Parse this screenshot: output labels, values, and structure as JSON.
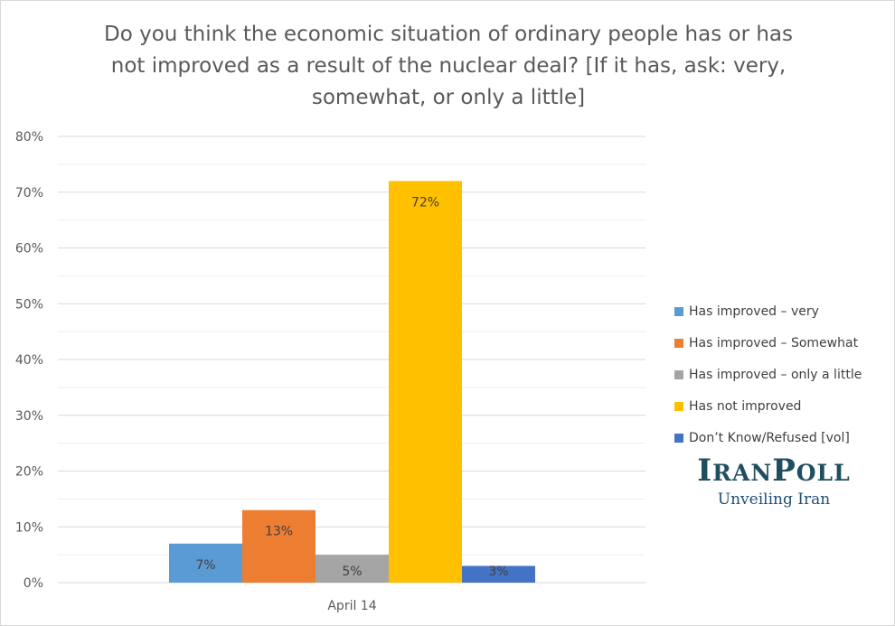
{
  "chart_data": {
    "type": "bar",
    "title": "Do you think the economic situation of ordinary people has or has not improved as a result of the nuclear deal? [If it has, ask: very, somewhat, or only a little]",
    "categories": [
      "April 14"
    ],
    "series": [
      {
        "name": "Has improved – very",
        "values": [
          7
        ],
        "color": "#5b9bd5",
        "label": "7%"
      },
      {
        "name": "Has improved – Somewhat",
        "values": [
          13
        ],
        "color": "#ed7d31",
        "label": "13%"
      },
      {
        "name": "Has improved – only a little",
        "values": [
          5
        ],
        "color": "#a5a5a5",
        "label": "5%"
      },
      {
        "name": "Has not improved",
        "values": [
          72
        ],
        "color": "#ffc000",
        "label": "72%"
      },
      {
        "name": "Don’t Know/Refused [vol]",
        "values": [
          3
        ],
        "color": "#4472c4",
        "label": "3%"
      }
    ],
    "y_ticks": [
      "0%",
      "10%",
      "20%",
      "30%",
      "40%",
      "50%",
      "60%",
      "70%",
      "80%"
    ],
    "ylim": [
      0,
      80
    ],
    "ylabel": "",
    "xlabel": "",
    "grid": true,
    "legend": "right"
  },
  "logo": {
    "name_big1": "I",
    "name_small1": "RAN",
    "name_big2": "P",
    "name_small2": "OLL",
    "tagline": "Unveiling Iran"
  }
}
